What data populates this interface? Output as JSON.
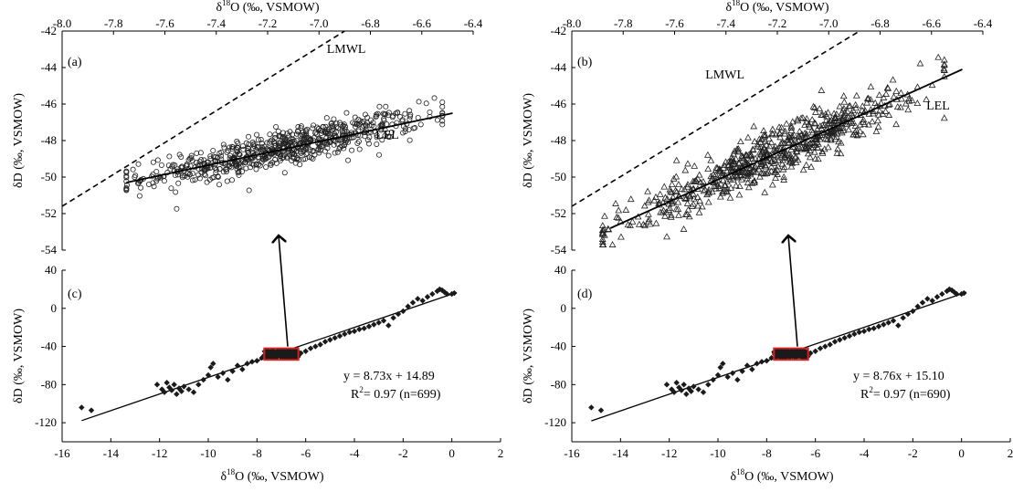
{
  "chart_data": [
    {
      "id": "a",
      "panel_label": "(a)",
      "type": "scatter",
      "xlabel_top": "δ18O (‰, VSMOW)",
      "ylabel": "δD (‰, VSMOW)",
      "x_axis_position": "top",
      "xlim": [
        -8.0,
        -6.4
      ],
      "ylim": [
        -54,
        -42
      ],
      "xticks": [
        "-8.0",
        "-7.8",
        "-7.6",
        "-7.4",
        "-7.2",
        "-7.0",
        "-6.8",
        "-6.6",
        "-6.4"
      ],
      "yticks": [
        "-42",
        "-44",
        "-46",
        "-48",
        "-50",
        "-52",
        "-54"
      ],
      "marker": "open-circle",
      "lines": [
        {
          "label": "LMWL",
          "style": "dashed",
          "x": [
            -8.0,
            -6.9
          ],
          "y": [
            -51.6,
            -42.0
          ]
        },
        {
          "label": "LEL",
          "style": "solid",
          "x": [
            -7.75,
            -6.48
          ],
          "y": [
            -50.3,
            -46.5
          ]
        }
      ],
      "point_cloud": {
        "count": 699,
        "x_range": [
          -7.75,
          -6.52
        ],
        "y_range": [
          -52.6,
          -44.7
        ],
        "trend": {
          "slope": 3.0,
          "intercept": -27.0
        },
        "spread": 0.9
      }
    },
    {
      "id": "b",
      "panel_label": "(b)",
      "type": "scatter",
      "xlabel_top": "δ18O (‰, VSMOW)",
      "ylabel": "δD (‰, VSMOW)",
      "x_axis_position": "top",
      "xlim": [
        -8.0,
        -6.4
      ],
      "ylim": [
        -54,
        -42
      ],
      "xticks": [
        "-8.0",
        "-7.8",
        "-7.6",
        "-7.4",
        "-7.2",
        "-7.0",
        "-6.8",
        "-6.6",
        "-6.4"
      ],
      "yticks": [
        "-42",
        "-44",
        "-46",
        "-48",
        "-50",
        "-52",
        "-54"
      ],
      "marker": "open-triangle",
      "lines": [
        {
          "label": "LMWL",
          "style": "dashed",
          "x": [
            -8.0,
            -6.88
          ],
          "y": [
            -51.6,
            -42.0
          ]
        },
        {
          "label": "LEL",
          "style": "solid",
          "x": [
            -7.85,
            -6.48
          ],
          "y": [
            -52.8,
            -44.1
          ]
        }
      ],
      "point_cloud": {
        "count": 690,
        "x_range": [
          -7.88,
          -6.55
        ],
        "y_range": [
          -53.7,
          -43.3
        ],
        "trend": {
          "slope": 6.3,
          "intercept": -3.3
        },
        "spread": 1.2
      }
    },
    {
      "id": "c",
      "panel_label": "(c)",
      "type": "scatter",
      "xlabel": "δ18O (‰, VSMOW)",
      "ylabel": "δD (‰, VSMOW)",
      "xlim": [
        -16,
        2
      ],
      "ylim": [
        -140,
        40
      ],
      "xticks": [
        "-16",
        "-14",
        "-12",
        "-10",
        "-8",
        "-6",
        "-4",
        "-2",
        "0",
        "2"
      ],
      "yticks": [
        "40",
        "0",
        "-40",
        "-80",
        "-120"
      ],
      "marker": "filled-diamond",
      "regression": {
        "slope": 8.73,
        "intercept": 14.89,
        "x_range": [
          -15.2,
          0.2
        ]
      },
      "equation": "y = 8.73x + 14.89",
      "r2_label": "R",
      "r2_text": "= 0.97 (n=699)",
      "highlight_box": {
        "x_range": [
          -7.7,
          -6.3
        ],
        "y_range": [
          -54,
          -42
        ],
        "color": "#d62020"
      },
      "diamonds": [
        [
          -15.2,
          -104
        ],
        [
          -14.8,
          -107
        ],
        [
          -12.1,
          -80
        ],
        [
          -11.9,
          -85
        ],
        [
          -11.8,
          -88
        ],
        [
          -11.7,
          -78
        ],
        [
          -11.6,
          -83
        ],
        [
          -11.5,
          -86
        ],
        [
          -11.4,
          -80
        ],
        [
          -11.3,
          -90
        ],
        [
          -11.2,
          -84
        ],
        [
          -11.1,
          -87
        ],
        [
          -11.0,
          -82
        ],
        [
          -10.8,
          -85
        ],
        [
          -10.6,
          -88
        ],
        [
          -10.4,
          -80
        ],
        [
          -10.2,
          -75
        ],
        [
          -10.0,
          -70
        ],
        [
          -9.9,
          -62
        ],
        [
          -9.8,
          -58
        ],
        [
          -9.6,
          -72
        ],
        [
          -9.4,
          -68
        ],
        [
          -9.2,
          -75
        ],
        [
          -9.0,
          -66
        ],
        [
          -8.8,
          -60
        ],
        [
          -8.6,
          -64
        ],
        [
          -8.4,
          -58
        ],
        [
          -8.2,
          -56
        ],
        [
          -8.0,
          -55
        ],
        [
          -7.8,
          -52
        ],
        [
          -6.2,
          -47
        ],
        [
          -6.0,
          -45
        ],
        [
          -5.8,
          -42
        ],
        [
          -5.6,
          -40
        ],
        [
          -5.4,
          -38
        ],
        [
          -5.2,
          -35
        ],
        [
          -5.0,
          -33
        ],
        [
          -4.8,
          -31
        ],
        [
          -4.6,
          -29
        ],
        [
          -4.4,
          -27
        ],
        [
          -4.2,
          -25
        ],
        [
          -4.0,
          -24
        ],
        [
          -3.8,
          -22
        ],
        [
          -3.6,
          -21
        ],
        [
          -3.4,
          -19
        ],
        [
          -3.2,
          -17
        ],
        [
          -3.0,
          -15
        ],
        [
          -2.8,
          -13
        ],
        [
          -2.6,
          -18
        ],
        [
          -2.4,
          -10
        ],
        [
          -2.2,
          -6
        ],
        [
          -2.0,
          -3
        ],
        [
          -1.8,
          2
        ],
        [
          -1.6,
          6
        ],
        [
          -1.4,
          10
        ],
        [
          -1.2,
          8
        ],
        [
          -1.0,
          12
        ],
        [
          -0.8,
          15
        ],
        [
          -0.6,
          18
        ],
        [
          -0.5,
          20
        ],
        [
          -0.4,
          19
        ],
        [
          -0.3,
          17
        ],
        [
          -0.2,
          15
        ],
        [
          0.0,
          15
        ],
        [
          0.1,
          16
        ]
      ],
      "cluster": {
        "count": 699,
        "x_range": [
          -7.7,
          -6.3
        ],
        "y_range": [
          -52,
          -44
        ]
      }
    },
    {
      "id": "d",
      "panel_label": "(d)",
      "type": "scatter",
      "xlabel": "δ18O (‰, VSMOW)",
      "ylabel": "δD (‰, VSMOW)",
      "xlim": [
        -16,
        2
      ],
      "ylim": [
        -140,
        40
      ],
      "xticks": [
        "-16",
        "-14",
        "-12",
        "-10",
        "-8",
        "-6",
        "-4",
        "-2",
        "0",
        "2"
      ],
      "yticks": [
        "40",
        "0",
        "-40",
        "-80",
        "-120"
      ],
      "marker": "filled-diamond",
      "regression": {
        "slope": 8.76,
        "intercept": 15.1,
        "x_range": [
          -15.2,
          0.2
        ]
      },
      "equation": "y = 8.76x + 15.10",
      "r2_label": "R",
      "r2_text": "= 0.97 (n=690)",
      "highlight_box": {
        "x_range": [
          -7.7,
          -6.3
        ],
        "y_range": [
          -54,
          -42
        ],
        "color": "#d62020"
      },
      "diamonds": [
        [
          -15.2,
          -104
        ],
        [
          -14.8,
          -107
        ],
        [
          -12.1,
          -80
        ],
        [
          -11.9,
          -85
        ],
        [
          -11.8,
          -88
        ],
        [
          -11.7,
          -78
        ],
        [
          -11.6,
          -83
        ],
        [
          -11.5,
          -86
        ],
        [
          -11.4,
          -80
        ],
        [
          -11.3,
          -90
        ],
        [
          -11.2,
          -84
        ],
        [
          -11.1,
          -87
        ],
        [
          -11.0,
          -82
        ],
        [
          -10.8,
          -85
        ],
        [
          -10.6,
          -88
        ],
        [
          -10.4,
          -80
        ],
        [
          -10.2,
          -75
        ],
        [
          -10.0,
          -70
        ],
        [
          -9.9,
          -62
        ],
        [
          -9.8,
          -58
        ],
        [
          -9.6,
          -72
        ],
        [
          -9.4,
          -68
        ],
        [
          -9.2,
          -75
        ],
        [
          -9.0,
          -66
        ],
        [
          -8.8,
          -60
        ],
        [
          -8.6,
          -64
        ],
        [
          -8.4,
          -58
        ],
        [
          -8.2,
          -56
        ],
        [
          -8.0,
          -55
        ],
        [
          -7.8,
          -52
        ],
        [
          -6.2,
          -47
        ],
        [
          -6.0,
          -45
        ],
        [
          -5.8,
          -42
        ],
        [
          -5.6,
          -40
        ],
        [
          -5.4,
          -38
        ],
        [
          -5.2,
          -35
        ],
        [
          -5.0,
          -33
        ],
        [
          -4.8,
          -31
        ],
        [
          -4.6,
          -29
        ],
        [
          -4.4,
          -27
        ],
        [
          -4.2,
          -25
        ],
        [
          -4.0,
          -24
        ],
        [
          -3.8,
          -22
        ],
        [
          -3.6,
          -21
        ],
        [
          -3.4,
          -19
        ],
        [
          -3.2,
          -17
        ],
        [
          -3.0,
          -15
        ],
        [
          -2.8,
          -13
        ],
        [
          -2.6,
          -18
        ],
        [
          -2.4,
          -10
        ],
        [
          -2.2,
          -6
        ],
        [
          -2.0,
          -3
        ],
        [
          -1.8,
          2
        ],
        [
          -1.6,
          6
        ],
        [
          -1.4,
          10
        ],
        [
          -1.2,
          8
        ],
        [
          -1.0,
          12
        ],
        [
          -0.8,
          15
        ],
        [
          -0.6,
          18
        ],
        [
          -0.5,
          20
        ],
        [
          -0.4,
          19
        ],
        [
          -0.3,
          17
        ],
        [
          -0.2,
          15
        ],
        [
          0.0,
          15
        ],
        [
          0.1,
          16
        ]
      ],
      "cluster": {
        "count": 690,
        "x_range": [
          -7.7,
          -6.3
        ],
        "y_range": [
          -52,
          -44
        ]
      }
    }
  ]
}
